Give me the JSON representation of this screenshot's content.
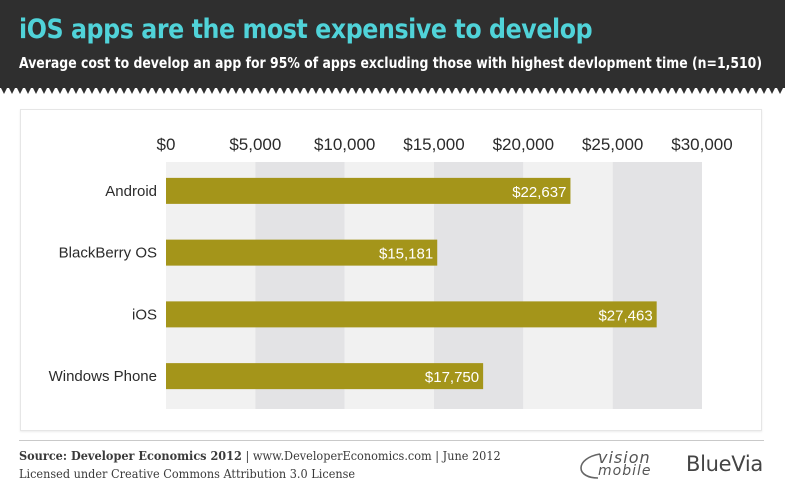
{
  "header": {
    "title": "iOS apps are the most expensive to develop",
    "subtitle": "Average cost to develop an app for 95% of apps excluding those with highest devlopment time (n=1,510)"
  },
  "chart_data": {
    "type": "bar",
    "orientation": "horizontal",
    "categories": [
      "Android",
      "BlackBerry OS",
      "iOS",
      "Windows Phone"
    ],
    "values": [
      22637,
      15181,
      27463,
      17750
    ],
    "value_labels": [
      "$22,637",
      "$15,181",
      "$27,463",
      "$17,750"
    ],
    "xlim": [
      0,
      30000
    ],
    "x_ticks": [
      0,
      5000,
      10000,
      15000,
      20000,
      25000,
      30000
    ],
    "x_tick_labels": [
      "$0",
      "$5,000",
      "$10,000",
      "$15,000",
      "$20,000",
      "$25,000",
      "$30,000"
    ],
    "x_axis_position": "top",
    "grid": "alternating vertical bands",
    "legend": "none",
    "colors": {
      "bar": "#a4951a",
      "band_light": "#f1f1f1",
      "band_dark": "#e3e3e5"
    }
  },
  "footer": {
    "source_bold": "Source: Developer Economics 2012",
    "source_rest": " | www.DeveloperEconomics.com | June 2012",
    "license": "Licensed under Creative Commons Attribution 3.0 License",
    "logo_vision_top": "vision",
    "logo_vision_bottom": "mobile",
    "logo_bluevia": "BlueVia"
  },
  "colors": {
    "header_bg": "#2f2f2f",
    "title": "#50d3d9",
    "subtitle": "#ffffff"
  }
}
